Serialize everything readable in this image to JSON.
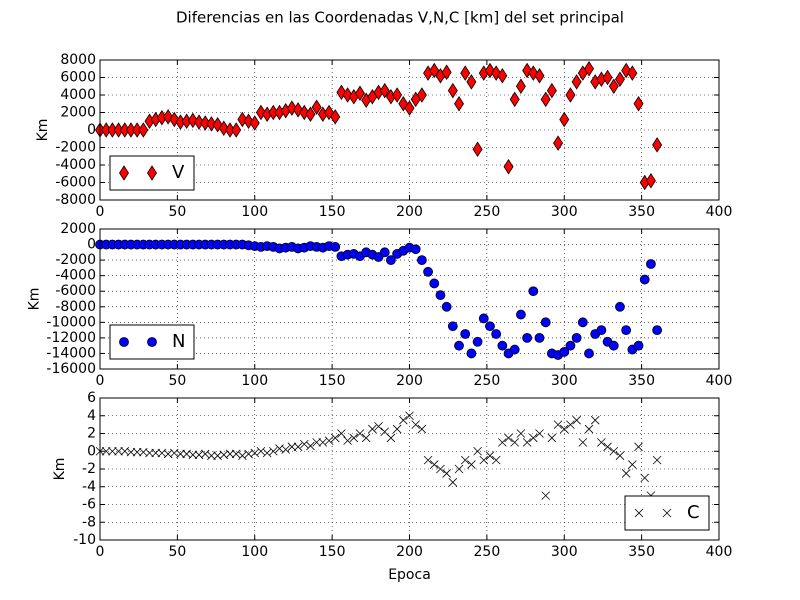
{
  "chart_data": [
    {
      "type": "scatter",
      "title": "Diferencias en las Coordenadas V,N,C [km] del set principal",
      "ylabel": "Km",
      "x": [
        0,
        4,
        8,
        12,
        16,
        20,
        24,
        28,
        32,
        36,
        40,
        44,
        48,
        52,
        56,
        60,
        64,
        68,
        72,
        76,
        80,
        84,
        88,
        92,
        96,
        100,
        104,
        108,
        112,
        116,
        120,
        124,
        128,
        132,
        136,
        140,
        144,
        148,
        152,
        156,
        160,
        164,
        168,
        172,
        176,
        180,
        184,
        188,
        192,
        196,
        200,
        204,
        208,
        212,
        216,
        220,
        224,
        228,
        232,
        236,
        240,
        244,
        248,
        252,
        256,
        260,
        264,
        268,
        272,
        276,
        280,
        284,
        288,
        292,
        296,
        300,
        304,
        308,
        312,
        316,
        320,
        324,
        328,
        332,
        336,
        340,
        344,
        348,
        352,
        356,
        360
      ],
      "series": [
        {
          "name": "V",
          "color": "#ff0000",
          "marker": "diamond",
          "values": [
            0,
            0,
            0,
            0,
            0,
            0,
            0,
            0,
            1000,
            1200,
            1400,
            1500,
            1200,
            900,
            1000,
            1100,
            900,
            800,
            700,
            600,
            200,
            0,
            0,
            1200,
            1000,
            800,
            2000,
            1800,
            2000,
            2000,
            2200,
            2500,
            2300,
            2000,
            1800,
            2600,
            1800,
            2000,
            1500,
            4300,
            4000,
            3800,
            4200,
            3400,
            3800,
            4300,
            4500,
            3800,
            4000,
            3000,
            2500,
            3500,
            4000,
            6500,
            6800,
            6200,
            6600,
            4500,
            3000,
            6500,
            5500,
            -2200,
            6500,
            6800,
            6500,
            6200,
            -4200,
            3500,
            5000,
            6800,
            6500,
            6200,
            3500,
            4500,
            -1500,
            1200,
            4000,
            5500,
            6500,
            7000,
            5500,
            5800,
            6000,
            5000,
            5800,
            6800,
            6500,
            3000,
            -6000,
            -5800,
            -1700
          ]
        }
      ],
      "xlim": [
        0,
        400
      ],
      "xticks": [
        0,
        50,
        100,
        150,
        200,
        250,
        300,
        350,
        400
      ],
      "ylim": [
        -8000,
        8000
      ],
      "yticks": [
        -8000,
        -6000,
        -4000,
        -2000,
        0,
        2000,
        4000,
        6000,
        8000
      ],
      "grid": true,
      "legend": "lower left"
    },
    {
      "type": "scatter",
      "ylabel": "Km",
      "x": [
        0,
        4,
        8,
        12,
        16,
        20,
        24,
        28,
        32,
        36,
        40,
        44,
        48,
        52,
        56,
        60,
        64,
        68,
        72,
        76,
        80,
        84,
        88,
        92,
        96,
        100,
        104,
        108,
        112,
        116,
        120,
        124,
        128,
        132,
        136,
        140,
        144,
        148,
        152,
        156,
        160,
        164,
        168,
        172,
        176,
        180,
        184,
        188,
        192,
        196,
        200,
        204,
        208,
        212,
        216,
        220,
        224,
        228,
        232,
        236,
        240,
        244,
        248,
        252,
        256,
        260,
        264,
        268,
        272,
        276,
        280,
        284,
        288,
        292,
        296,
        300,
        304,
        308,
        312,
        316,
        320,
        324,
        328,
        332,
        336,
        340,
        344,
        348,
        352,
        356,
        360
      ],
      "series": [
        {
          "name": "N",
          "color": "#0000ff",
          "marker": "circle",
          "values": [
            0,
            0,
            0,
            0,
            0,
            0,
            0,
            0,
            0,
            0,
            0,
            0,
            0,
            0,
            0,
            0,
            0,
            0,
            0,
            0,
            0,
            0,
            0,
            0,
            -100,
            -200,
            -300,
            -200,
            -300,
            -500,
            -400,
            -300,
            -500,
            -400,
            -200,
            -300,
            -400,
            -200,
            -300,
            -1500,
            -1300,
            -1200,
            -1500,
            -1000,
            -1300,
            -1600,
            -1000,
            -2000,
            -1200,
            -800,
            -400,
            -600,
            -2000,
            -3500,
            -5000,
            -6500,
            -8000,
            -10500,
            -13000,
            -11500,
            -14000,
            -12500,
            -9500,
            -10500,
            -11500,
            -13000,
            -14000,
            -13500,
            -9000,
            -12000,
            -6000,
            -12000,
            -10000,
            -14000,
            -14200,
            -13800,
            -13000,
            -12000,
            -10000,
            -14000,
            -11500,
            -11000,
            -12500,
            -13000,
            -8000,
            -11000,
            -13500,
            -13000,
            -4500,
            -2500,
            -11000
          ]
        }
      ],
      "xlim": [
        0,
        400
      ],
      "xticks": [
        0,
        50,
        100,
        150,
        200,
        250,
        300,
        350,
        400
      ],
      "ylim": [
        -16000,
        2000
      ],
      "yticks": [
        -16000,
        -14000,
        -12000,
        -10000,
        -8000,
        -6000,
        -4000,
        -2000,
        0,
        2000
      ],
      "grid": true,
      "legend": "lower left"
    },
    {
      "type": "scatter",
      "ylabel": "Km",
      "xlabel": "Epoca",
      "x": [
        0,
        4,
        8,
        12,
        16,
        20,
        24,
        28,
        32,
        36,
        40,
        44,
        48,
        52,
        56,
        60,
        64,
        68,
        72,
        76,
        80,
        84,
        88,
        92,
        96,
        100,
        104,
        108,
        112,
        116,
        120,
        124,
        128,
        132,
        136,
        140,
        144,
        148,
        152,
        156,
        160,
        164,
        168,
        172,
        176,
        180,
        184,
        188,
        192,
        196,
        200,
        204,
        208,
        212,
        216,
        220,
        224,
        228,
        232,
        236,
        240,
        244,
        248,
        252,
        256,
        260,
        264,
        268,
        272,
        276,
        280,
        284,
        288,
        292,
        296,
        300,
        304,
        308,
        312,
        316,
        320,
        324,
        328,
        332,
        336,
        340,
        344,
        348,
        352,
        356,
        360
      ],
      "series": [
        {
          "name": "C",
          "color": "#000000",
          "marker": "x",
          "values": [
            0,
            0,
            0,
            0,
            0,
            -0.1,
            -0.1,
            -0.1,
            -0.2,
            -0.2,
            -0.2,
            -0.3,
            -0.2,
            -0.3,
            -0.3,
            -0.4,
            -0.4,
            -0.3,
            -0.5,
            -0.5,
            -0.4,
            -0.3,
            -0.3,
            -0.5,
            -0.3,
            -0.2,
            0,
            -0.2,
            0,
            0.3,
            0.2,
            0.5,
            0.5,
            0.8,
            0.6,
            1,
            1,
            1.2,
            1.5,
            2,
            1.2,
            1.5,
            2,
            1.5,
            2.5,
            2.8,
            2.2,
            1.5,
            2.5,
            3.5,
            4,
            3,
            2.5,
            -1,
            -1.5,
            -2,
            -2.5,
            -3.5,
            -2,
            -1,
            -1.5,
            0,
            -1,
            -0.5,
            -1,
            1,
            1.5,
            1,
            2,
            1,
            1.5,
            2,
            -5,
            1.5,
            3,
            2.5,
            3,
            3.5,
            1,
            2.5,
            3.5,
            1,
            0.5,
            0,
            -0.5,
            -2.5,
            -1.5,
            0.5,
            -3,
            -5,
            -1
          ]
        }
      ],
      "xlim": [
        0,
        400
      ],
      "xticks": [
        0,
        50,
        100,
        150,
        200,
        250,
        300,
        350,
        400
      ],
      "ylim": [
        -10,
        6
      ],
      "yticks": [
        -10,
        -8,
        -6,
        -4,
        -2,
        0,
        2,
        4,
        6
      ],
      "grid": true,
      "legend": "lower right"
    }
  ]
}
